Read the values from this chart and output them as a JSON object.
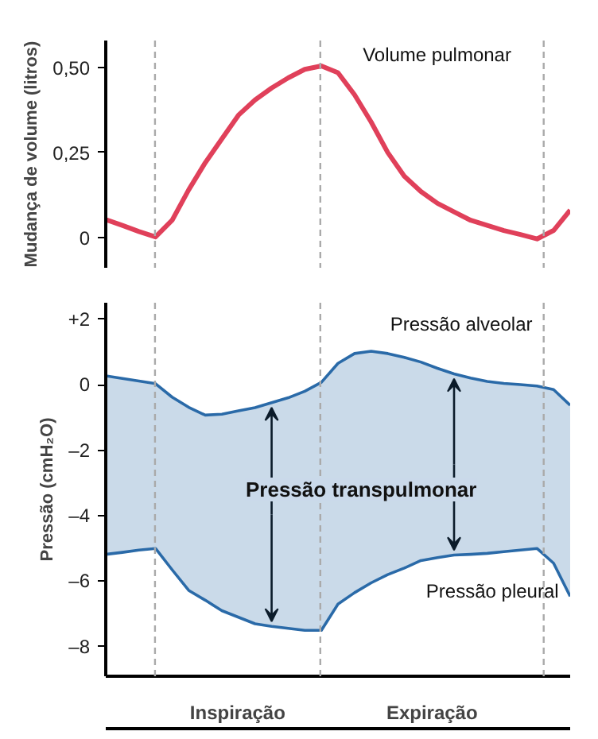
{
  "chart_data": [
    {
      "type": "line",
      "ylabel": "Mudança de volume (litros)",
      "ylim": [
        -0.09,
        0.58
      ],
      "yticks": [
        0,
        {
          "value": 0.25,
          "label": "0,25"
        },
        {
          "value": 0.5,
          "label": "0,50"
        }
      ],
      "tick_labels": "y",
      "grid": false,
      "categories": [
        null,
        null,
        null,
        null,
        null,
        null,
        null,
        null,
        null,
        null,
        null,
        null,
        null,
        null,
        null,
        null,
        null,
        null,
        null,
        null,
        null,
        null,
        null,
        null,
        null,
        null,
        null,
        null,
        null
      ],
      "series": [
        {
          "name": "Volume pulmonar",
          "color": "#e0405a",
          "values": [
            0.052,
            0.035,
            0.017,
            0.001,
            0.05,
            0.14,
            0.22,
            0.29,
            0.36,
            0.405,
            0.44,
            0.47,
            0.495,
            0.505,
            0.485,
            0.42,
            0.34,
            0.25,
            0.18,
            0.135,
            0.1,
            0.075,
            0.05,
            0.035,
            0.02,
            0.008,
            -0.005,
            0.02,
            0.08
          ]
        }
      ]
    },
    {
      "type": "line",
      "ylabel": "Pressão (cmH₂O)",
      "ylim": [
        -8.9,
        2.5
      ],
      "yticks": [
        {
          "value": 2,
          "label": "+2"
        },
        0,
        {
          "value": -2,
          "label": "–2"
        },
        {
          "value": -4,
          "label": "–4"
        },
        {
          "value": -6,
          "label": "–6"
        },
        {
          "value": -8,
          "label": "–8"
        }
      ],
      "tick_labels": "y",
      "grid": false,
      "categories": [
        null,
        null,
        null,
        null,
        null,
        null,
        null,
        null,
        null,
        null,
        null,
        null,
        null,
        null,
        null,
        null,
        null,
        null,
        null,
        null,
        null,
        null,
        null,
        null,
        null,
        null,
        null,
        null,
        null
      ],
      "series": [
        {
          "name": "Pressão alveolar",
          "color": "#2a6aa8",
          "values": [
            0.27,
            0.19,
            0.11,
            0.03,
            -0.38,
            -0.69,
            -0.93,
            -0.9,
            -0.8,
            -0.7,
            -0.55,
            -0.4,
            -0.2,
            0.07,
            0.65,
            0.95,
            1.02,
            0.95,
            0.83,
            0.69,
            0.5,
            0.33,
            0.2,
            0.1,
            0.04,
            0,
            -0.04,
            -0.15,
            -0.63
          ],
          "lower": [
            -5.18,
            -5.12,
            -5.05,
            -5.0,
            -5.65,
            -6.28,
            -6.58,
            -6.9,
            -7.1,
            -7.3,
            -7.38,
            -7.44,
            -7.5,
            -7.5,
            -6.7,
            -6.35,
            -6.05,
            -5.8,
            -5.6,
            -5.37,
            -5.28,
            -5.2,
            -5.18,
            -5.15,
            -5.1,
            -5.05,
            -5.0,
            -5.45,
            -6.46
          ],
          "upper": [
            0.27,
            0.19,
            0.11,
            0.03,
            -0.38,
            -0.69,
            -0.93,
            -0.9,
            -0.8,
            -0.7,
            -0.55,
            -0.4,
            -0.2,
            0.07,
            0.65,
            0.95,
            1.02,
            0.95,
            0.83,
            0.69,
            0.5,
            0.33,
            0.2,
            0.1,
            0.04,
            0,
            -0.04,
            -0.15,
            -0.63
          ]
        },
        {
          "name": "Pressão pleural",
          "color": "#2a6aa8",
          "values": [
            -5.18,
            -5.12,
            -5.05,
            -5.0,
            -5.65,
            -6.28,
            -6.58,
            -6.9,
            -7.1,
            -7.3,
            -7.38,
            -7.44,
            -7.5,
            -7.5,
            -6.7,
            -6.35,
            -6.05,
            -5.8,
            -5.6,
            -5.37,
            -5.28,
            -5.2,
            -5.18,
            -5.15,
            -5.1,
            -5.05,
            -5.0,
            -5.45,
            -6.46
          ]
        }
      ],
      "annotations": [
        "Pressão transpulmonar",
        "Inspiração",
        "Expiração"
      ]
    }
  ]
}
